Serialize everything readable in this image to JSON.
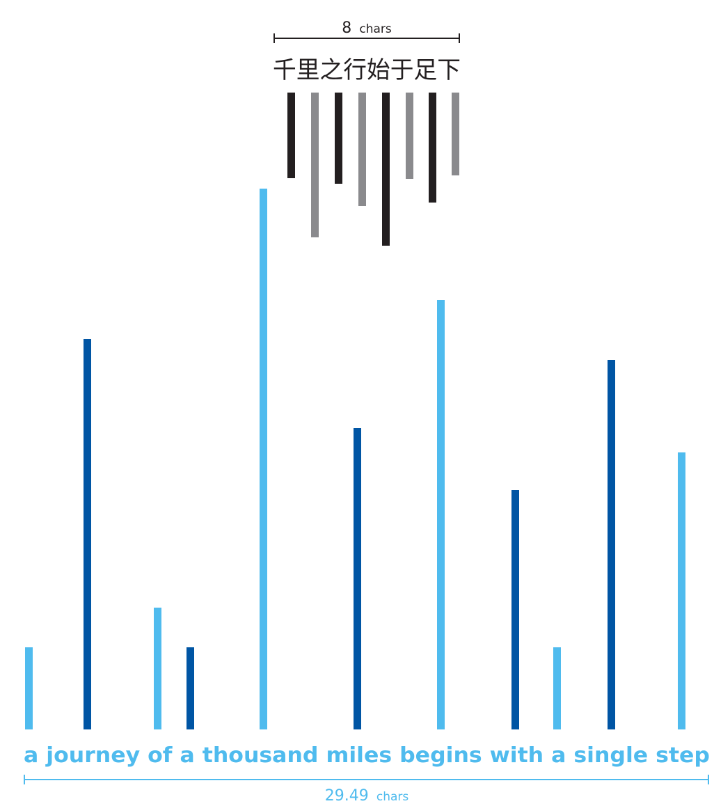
{
  "chinese": {
    "text": "千里之行始于足下",
    "length_label": {
      "value": "8",
      "unit": "chars"
    },
    "bar_lengths": [
      1.23,
      2.08,
      1.31,
      1.63,
      2.2,
      1.24,
      1.58,
      1.19
    ],
    "bar_colors": [
      "#231f20",
      "#8a8a8d",
      "#231f20",
      "#8a8a8d",
      "#231f20",
      "#8a8a8d",
      "#231f20",
      "#8a8a8d"
    ],
    "text_color": "#231f20",
    "label_color": "#231f20"
  },
  "english": {
    "text": "a journey of a thousand miles begins with a single step",
    "length_label": {
      "value": "29.49",
      "unit": "chars"
    },
    "bar_lengths": [
      1.18,
      5.61,
      1.75,
      1.18,
      7.77,
      4.33,
      6.17,
      3.44,
      1.18,
      5.31,
      3.98
    ],
    "bar_colors": [
      "#4fbbee",
      "#0055a4",
      "#4fbbee",
      "#0055a4",
      "#4fbbee",
      "#0055a4",
      "#4fbbee",
      "#0055a4",
      "#4fbbee",
      "#0055a4",
      "#4fbbee"
    ],
    "text_color": "#4fbbee",
    "label_color": "#4fbbee"
  }
}
